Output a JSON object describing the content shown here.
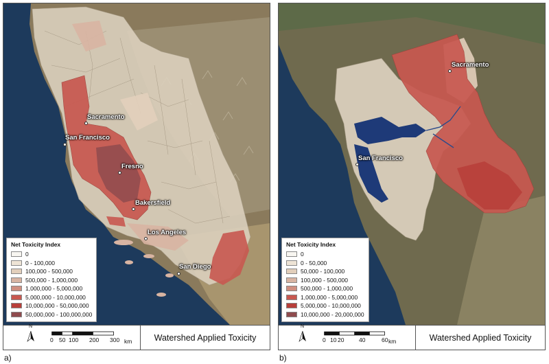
{
  "panel_a": {
    "label": "a)",
    "legend": {
      "title": "Net Toxicity Index",
      "entries": [
        {
          "label": "0",
          "color": "#f8f6f1"
        },
        {
          "label": "0 - 100,000",
          "color": "#eee4d6"
        },
        {
          "label": "100,000 - 500,000",
          "color": "#e2cfbb"
        },
        {
          "label": "500,000 - 1,000,000",
          "color": "#d8b4a2"
        },
        {
          "label": "1,000,000 - 5,000,000",
          "color": "#cf8f80"
        },
        {
          "label": "5,000,000 - 10,000,000",
          "color": "#c85850"
        },
        {
          "label": "10,000,000 - 50,000,000",
          "color": "#b83f3a"
        },
        {
          "label": "50,000,000 - 100,000,000",
          "color": "#8f4b4e"
        }
      ]
    },
    "cities": [
      {
        "name": "Sacramento"
      },
      {
        "name": "San Francisco"
      },
      {
        "name": "Fresno"
      },
      {
        "name": "Bakersfield"
      },
      {
        "name": "Los Angeles"
      },
      {
        "name": "San Diego"
      }
    ],
    "scale": {
      "ticks": [
        "0",
        "50",
        "100",
        "200",
        "300"
      ],
      "unit": "km"
    },
    "north": "N",
    "title": "Watershed Applied Toxicity"
  },
  "panel_b": {
    "label": "b)",
    "legend": {
      "title": "Net Toxicity Index",
      "entries": [
        {
          "label": "0",
          "color": "#f8f6f1"
        },
        {
          "label": "0 - 50,000",
          "color": "#eee4d6"
        },
        {
          "label": "50,000 - 100,000",
          "color": "#e2cfbb"
        },
        {
          "label": "100,000 - 500,000",
          "color": "#d8b4a2"
        },
        {
          "label": "500,000 - 1,000,000",
          "color": "#cf8f80"
        },
        {
          "label": "1,000,000 - 5,000,000",
          "color": "#c85850"
        },
        {
          "label": "5,000,000 - 10,000,000",
          "color": "#b83f3a"
        },
        {
          "label": "10,000,000 - 20,000,000",
          "color": "#8f4b4e"
        }
      ]
    },
    "cities": [
      {
        "name": "Sacramento"
      },
      {
        "name": "San Francisco"
      }
    ],
    "scale": {
      "ticks": [
        "0",
        "10",
        "20",
        "40",
        "60"
      ],
      "unit": "km"
    },
    "north": "N",
    "title": "Watershed Applied Toxicity"
  }
}
